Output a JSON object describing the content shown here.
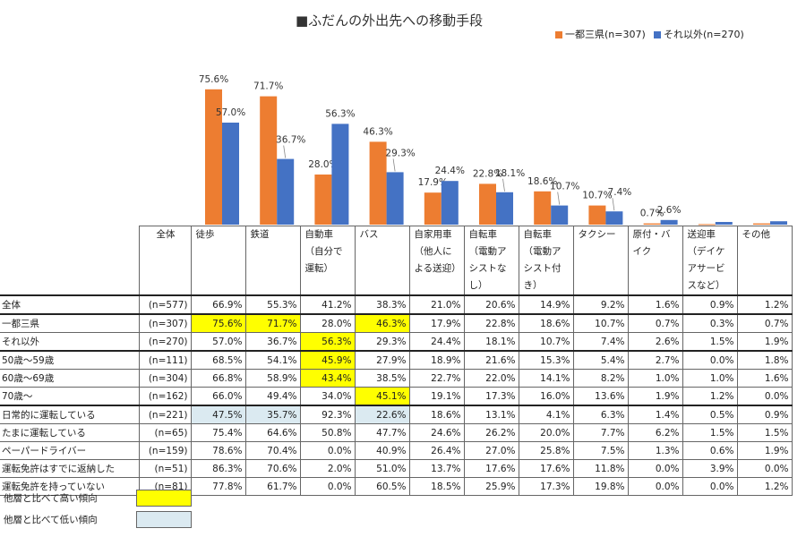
{
  "title": "■ふだんの外出先への移動手段",
  "legend": [
    {
      "label": "一都三県(n=307)",
      "color": "#ed7d31"
    },
    {
      "label": "それ以外(n=270)",
      "color": "#4472c4"
    }
  ],
  "chart_data": {
    "type": "bar",
    "categories": [
      "徒歩",
      "鉄道",
      "自動車（自分で運転）",
      "バス",
      "自家用車（他人による送迎）",
      "自転車（電動アシストなし）",
      "自転車（電動アシスト付き）",
      "タクシー",
      "原付・バイク",
      "送迎車（デイケアサービスなど）",
      "その他"
    ],
    "series": [
      {
        "name": "一都三県(n=307)",
        "values": [
          75.6,
          71.7,
          28.0,
          46.3,
          17.9,
          22.8,
          18.6,
          10.7,
          0.7,
          0.3,
          0.7
        ],
        "labels": [
          "75.6%",
          "71.7%",
          "28.0%",
          "46.3%",
          "17.9%",
          "22.8%",
          "18.6%",
          "10.7%",
          "0.7%",
          "",
          ""
        ]
      },
      {
        "name": "それ以外(n=270)",
        "values": [
          57.0,
          36.7,
          56.3,
          29.3,
          24.4,
          18.1,
          10.7,
          7.4,
          2.6,
          1.5,
          1.9
        ],
        "labels": [
          "57.0%",
          "36.7%",
          "56.3%",
          "29.3%",
          "24.4%",
          "18.1%",
          "10.7%",
          "7.4%",
          "2.6%",
          "",
          ""
        ]
      }
    ],
    "ylim": [
      0,
      80
    ]
  },
  "table": {
    "corner": "全体",
    "headers": [
      "徒歩",
      "鉄道",
      "自動車（自分で運転）",
      "バス",
      "自家用車（他人による送迎）",
      "自転車（電動アシストなし）",
      "自転車（電動アシスト付き）",
      "タクシー",
      "原付・バイク",
      "送迎車（デイケアサービスなど）",
      "その他"
    ],
    "rows": [
      {
        "label": "全体",
        "n": "(n=577)",
        "values": [
          "66.9%",
          "55.3%",
          "41.2%",
          "38.3%",
          "21.0%",
          "20.6%",
          "14.9%",
          "9.2%",
          "1.6%",
          "0.9%",
          "1.2%"
        ],
        "marks": [
          "",
          "",
          "",
          "",
          "",
          "",
          "",
          "",
          "",
          "",
          ""
        ]
      },
      {
        "label": "一都三県",
        "n": "(n=307)",
        "values": [
          "75.6%",
          "71.7%",
          "28.0%",
          "46.3%",
          "17.9%",
          "22.8%",
          "18.6%",
          "10.7%",
          "0.7%",
          "0.3%",
          "0.7%"
        ],
        "marks": [
          "hi",
          "hi",
          "",
          "hi",
          "",
          "",
          "",
          "",
          "",
          "",
          ""
        ]
      },
      {
        "label": "それ以外",
        "n": "(n=270)",
        "values": [
          "57.0%",
          "36.7%",
          "56.3%",
          "29.3%",
          "24.4%",
          "18.1%",
          "10.7%",
          "7.4%",
          "2.6%",
          "1.5%",
          "1.9%"
        ],
        "marks": [
          "",
          "",
          "hi",
          "",
          "",
          "",
          "",
          "",
          "",
          "",
          ""
        ]
      },
      {
        "label": "50歳～59歳",
        "n": "(n=111)",
        "values": [
          "68.5%",
          "54.1%",
          "45.9%",
          "27.9%",
          "18.9%",
          "21.6%",
          "15.3%",
          "5.4%",
          "2.7%",
          "0.0%",
          "1.8%"
        ],
        "marks": [
          "",
          "",
          "hi",
          "",
          "",
          "",
          "",
          "",
          "",
          "",
          ""
        ]
      },
      {
        "label": "60歳～69歳",
        "n": "(n=304)",
        "values": [
          "66.8%",
          "58.9%",
          "43.4%",
          "38.5%",
          "22.7%",
          "22.0%",
          "14.1%",
          "8.2%",
          "1.0%",
          "1.0%",
          "1.6%"
        ],
        "marks": [
          "",
          "",
          "hi",
          "",
          "",
          "",
          "",
          "",
          "",
          "",
          ""
        ]
      },
      {
        "label": "70歳～",
        "n": "(n=162)",
        "values": [
          "66.0%",
          "49.4%",
          "34.0%",
          "45.1%",
          "19.1%",
          "17.3%",
          "16.0%",
          "13.6%",
          "1.9%",
          "1.2%",
          "0.0%"
        ],
        "marks": [
          "",
          "",
          "",
          "hi",
          "",
          "",
          "",
          "",
          "",
          "",
          ""
        ]
      },
      {
        "label": "日常的に運転している",
        "n": "(n=221)",
        "values": [
          "47.5%",
          "35.7%",
          "92.3%",
          "22.6%",
          "18.6%",
          "13.1%",
          "4.1%",
          "6.3%",
          "1.4%",
          "0.5%",
          "0.9%"
        ],
        "marks": [
          "lo",
          "lo",
          "",
          "lo",
          "",
          "",
          "",
          "",
          "",
          "",
          ""
        ]
      },
      {
        "label": "たまに運転している",
        "n": "(n=65)",
        "values": [
          "75.4%",
          "64.6%",
          "50.8%",
          "47.7%",
          "24.6%",
          "26.2%",
          "20.0%",
          "7.7%",
          "6.2%",
          "1.5%",
          "1.5%"
        ],
        "marks": [
          "",
          "",
          "",
          "",
          "",
          "",
          "",
          "",
          "",
          "",
          ""
        ]
      },
      {
        "label": "ペーパードライバー",
        "n": "(n=159)",
        "values": [
          "78.6%",
          "70.4%",
          "0.0%",
          "40.9%",
          "26.4%",
          "27.0%",
          "25.8%",
          "7.5%",
          "1.3%",
          "0.6%",
          "1.9%"
        ],
        "marks": [
          "",
          "",
          "",
          "",
          "",
          "",
          "",
          "",
          "",
          "",
          ""
        ]
      },
      {
        "label": "運転免許はすでに返納した",
        "n": "(n=51)",
        "values": [
          "86.3%",
          "70.6%",
          "2.0%",
          "51.0%",
          "13.7%",
          "17.6%",
          "17.6%",
          "11.8%",
          "0.0%",
          "3.9%",
          "0.0%"
        ],
        "marks": [
          "",
          "",
          "",
          "",
          "",
          "",
          "",
          "",
          "",
          "",
          ""
        ]
      },
      {
        "label": "運転免許を持っていない",
        "n": "(n=81)",
        "values": [
          "77.8%",
          "61.7%",
          "0.0%",
          "60.5%",
          "18.5%",
          "25.9%",
          "17.3%",
          "19.8%",
          "0.0%",
          "0.0%",
          "1.2%"
        ],
        "marks": [
          "",
          "",
          "",
          "",
          "",
          "",
          "",
          "",
          "",
          "",
          ""
        ]
      }
    ]
  },
  "notes": [
    {
      "label": "他層と比べて高い傾向",
      "color": "#ffff00"
    },
    {
      "label": "他層と比べて低い傾向",
      "color": "#dbeaf1"
    }
  ]
}
